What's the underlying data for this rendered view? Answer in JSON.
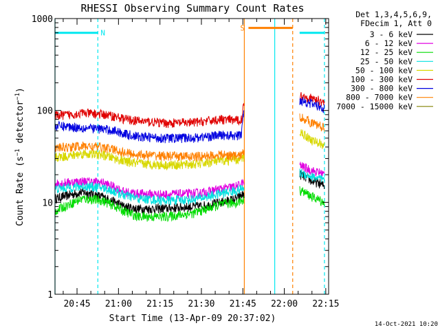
{
  "chart_data": {
    "type": "line",
    "title": "RHESSI Observing Summary Count Rates",
    "ylabel": "Count Rate (s⁻¹ detector⁻¹)",
    "ylabel_main": "Count Rate (s",
    "ylabel_exp1": "−1",
    "ylabel_mid": " detector",
    "ylabel_exp2": "−1",
    "ylabel_close": ")",
    "xlabel": "Start Time (13-Apr-09 20:37:02)",
    "yscale": "log",
    "ylim": [
      1,
      1000
    ],
    "y_ticks": [
      {
        "value": 1,
        "label": "1"
      },
      {
        "value": 10,
        "label": "10"
      },
      {
        "value": 100,
        "label": "100"
      },
      {
        "value": 1000,
        "label": "1000"
      }
    ],
    "xlim_minutes": [
      0,
      99
    ],
    "x_ticks": [
      {
        "minute": 7.97,
        "label": "20:45"
      },
      {
        "minute": 22.97,
        "label": "21:00"
      },
      {
        "minute": 37.97,
        "label": "21:15"
      },
      {
        "minute": 52.97,
        "label": "21:30"
      },
      {
        "minute": 67.97,
        "label": "21:45"
      },
      {
        "minute": 82.97,
        "label": "22:00"
      },
      {
        "minute": 97.97,
        "label": "22:15"
      }
    ],
    "legend_header": [
      "Det 1,3,4,5,6,9,",
      "FDecim 1, Att 0"
    ],
    "data_gap_minutes": [
      68.5,
      88.5
    ],
    "series": [
      {
        "name": "3 - 6 keV",
        "color": "#000000",
        "points": [
          [
            0,
            11
          ],
          [
            5,
            12
          ],
          [
            10,
            13
          ],
          [
            17,
            11.5
          ],
          [
            22,
            10
          ],
          [
            25,
            9
          ],
          [
            30,
            8.5
          ],
          [
            40,
            8.6
          ],
          [
            50,
            9
          ],
          [
            55,
            9.3
          ],
          [
            60,
            10
          ],
          [
            66,
            11
          ],
          [
            67.5,
            12
          ],
          [
            89,
            20
          ],
          [
            93,
            17
          ],
          [
            96,
            16
          ],
          [
            97.5,
            15
          ]
        ]
      },
      {
        "name": "6 - 12 keV",
        "color": "#e000e0",
        "points": [
          [
            0,
            16
          ],
          [
            5,
            16.5
          ],
          [
            10,
            17
          ],
          [
            17,
            16.5
          ],
          [
            22,
            14.5
          ],
          [
            25,
            13
          ],
          [
            30,
            12.5
          ],
          [
            40,
            12.2
          ],
          [
            50,
            12.5
          ],
          [
            55,
            13
          ],
          [
            60,
            14
          ],
          [
            66,
            15
          ],
          [
            67.5,
            16
          ],
          [
            89,
            25
          ],
          [
            93,
            22
          ],
          [
            96,
            21
          ],
          [
            97.5,
            20
          ]
        ]
      },
      {
        "name": "12 - 25 keV",
        "color": "#00dc00",
        "points": [
          [
            0,
            8
          ],
          [
            5,
            9.5
          ],
          [
            10,
            11
          ],
          [
            17,
            10.5
          ],
          [
            22,
            9
          ],
          [
            25,
            8
          ],
          [
            30,
            7
          ],
          [
            40,
            7
          ],
          [
            50,
            7.6
          ],
          [
            55,
            8.5
          ],
          [
            60,
            9.5
          ],
          [
            66,
            10
          ],
          [
            67.5,
            10.5
          ],
          [
            89,
            13.5
          ],
          [
            93,
            11.5
          ],
          [
            96,
            10.5
          ],
          [
            97.5,
            10
          ]
        ]
      },
      {
        "name": "25 - 50 keV",
        "color": "#00e0e0",
        "points": [
          [
            0,
            14
          ],
          [
            5,
            14.5
          ],
          [
            10,
            15
          ],
          [
            17,
            14.5
          ],
          [
            22,
            13
          ],
          [
            25,
            12
          ],
          [
            30,
            11
          ],
          [
            40,
            10.5
          ],
          [
            50,
            10.8
          ],
          [
            55,
            11.5
          ],
          [
            60,
            12.5
          ],
          [
            66,
            13.5
          ],
          [
            67.5,
            14
          ],
          [
            89,
            21
          ],
          [
            93,
            19
          ],
          [
            96,
            18
          ],
          [
            97.5,
            17
          ]
        ]
      },
      {
        "name": "50 - 100 keV",
        "color": "#d8d800",
        "points": [
          [
            0,
            31
          ],
          [
            5,
            32
          ],
          [
            10,
            34
          ],
          [
            17,
            33
          ],
          [
            22,
            30
          ],
          [
            25,
            28
          ],
          [
            30,
            26.5
          ],
          [
            40,
            25.5
          ],
          [
            50,
            26
          ],
          [
            55,
            27
          ],
          [
            60,
            28.5
          ],
          [
            66,
            29
          ],
          [
            67.5,
            30
          ],
          [
            89,
            58
          ],
          [
            93,
            47
          ],
          [
            96,
            44
          ],
          [
            97.5,
            42
          ]
        ]
      },
      {
        "name": "100 - 300 keV",
        "color": "#e00000",
        "points": [
          [
            0,
            88
          ],
          [
            5,
            90
          ],
          [
            10,
            94
          ],
          [
            17,
            91
          ],
          [
            22,
            86
          ],
          [
            25,
            81
          ],
          [
            30,
            77
          ],
          [
            40,
            73
          ],
          [
            50,
            74
          ],
          [
            55,
            77
          ],
          [
            60,
            80
          ],
          [
            66,
            78
          ],
          [
            67.5,
            80
          ],
          [
            68.2,
            110
          ],
          [
            89,
            145
          ],
          [
            93,
            135
          ],
          [
            96,
            128
          ],
          [
            97.5,
            122
          ]
        ]
      },
      {
        "name": "300 - 800 keV",
        "color": "#0000e0",
        "points": [
          [
            0,
            68
          ],
          [
            5,
            67
          ],
          [
            10,
            65
          ],
          [
            17,
            63
          ],
          [
            22,
            60
          ],
          [
            25,
            56
          ],
          [
            30,
            52
          ],
          [
            40,
            50
          ],
          [
            50,
            50.5
          ],
          [
            55,
            52
          ],
          [
            60,
            54
          ],
          [
            66,
            53
          ],
          [
            67.5,
            55
          ],
          [
            68.2,
            95
          ],
          [
            89,
            130
          ],
          [
            93,
            118
          ],
          [
            96,
            110
          ],
          [
            97.5,
            105
          ]
        ]
      },
      {
        "name": "800 - 7000 keV",
        "color": "#ff8000",
        "points": [
          [
            0,
            39
          ],
          [
            5,
            40
          ],
          [
            10,
            41
          ],
          [
            17,
            40
          ],
          [
            22,
            37
          ],
          [
            25,
            35
          ],
          [
            30,
            33
          ],
          [
            40,
            32
          ],
          [
            50,
            31.5
          ],
          [
            55,
            32
          ],
          [
            60,
            33
          ],
          [
            66,
            32
          ],
          [
            67.5,
            33
          ],
          [
            89,
            85
          ],
          [
            93,
            73
          ],
          [
            96,
            68
          ],
          [
            97.5,
            64
          ]
        ]
      },
      {
        "name": "7000 - 15000 keV",
        "color": "#808000",
        "points": []
      }
    ],
    "state_bars": [
      {
        "label": "N",
        "color": "#00e8f0",
        "segments": [
          [
            0,
            15.5
          ],
          [
            88.5,
            97.5
          ]
        ],
        "level": 700
      },
      {
        "label": "S",
        "color": "#ff8000",
        "segments": [
          [
            70,
            86
          ]
        ],
        "level": 790
      }
    ],
    "markers": [
      {
        "color": "#00e8f0",
        "style": "solid",
        "minute": 0
      },
      {
        "color": "#00e8f0",
        "style": "dashed",
        "minute": 15.5
      },
      {
        "color": "#ff8000",
        "style": "solid",
        "minute": 68.5
      },
      {
        "color": "#00e8f0",
        "style": "solid",
        "minute": 79.5
      },
      {
        "color": "#ff8000",
        "style": "dashed",
        "minute": 86
      },
      {
        "color": "#00e8f0",
        "style": "dashed",
        "minute": 97.5
      }
    ],
    "timestamp": "14-Oct-2021 10:20"
  }
}
